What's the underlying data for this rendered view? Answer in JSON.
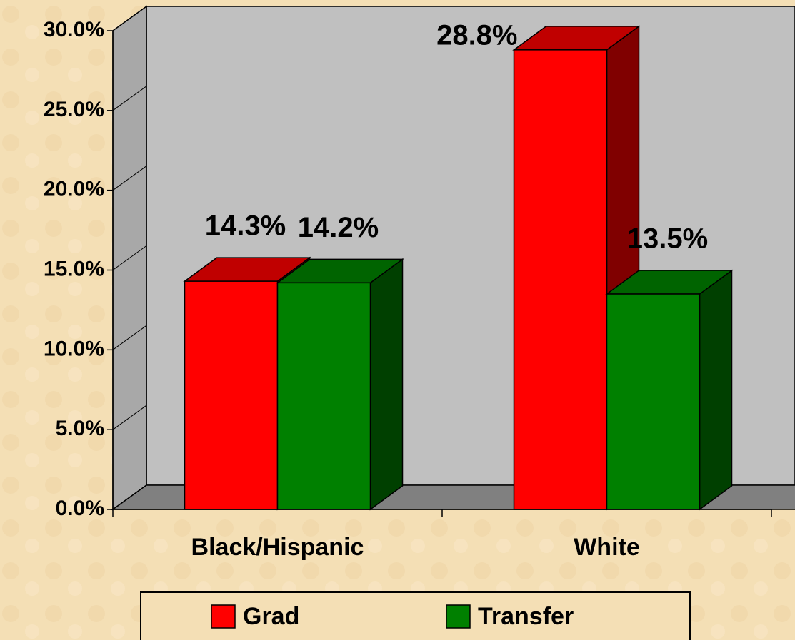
{
  "chart_data": {
    "type": "bar3d",
    "categories": [
      "Black/Hispanic",
      "White"
    ],
    "series": [
      {
        "name": "Grad",
        "color": "#ff0000",
        "top": "#c00000",
        "side": "#800000",
        "values": [
          14.3,
          28.8
        ],
        "value_labels": [
          "14.3%",
          "28.8%"
        ]
      },
      {
        "name": "Transfer",
        "color": "#008000",
        "top": "#006400",
        "side": "#004000",
        "values": [
          14.2,
          13.5
        ],
        "value_labels": [
          "14.2%",
          "13.5%"
        ]
      }
    ],
    "ylim": [
      0,
      30
    ],
    "yticks": [
      {
        "value": 0,
        "label": "0.0%"
      },
      {
        "value": 5,
        "label": "5.0%"
      },
      {
        "value": 10,
        "label": "10.0%"
      },
      {
        "value": 15,
        "label": "15.0%"
      },
      {
        "value": 20,
        "label": "20.0%"
      },
      {
        "value": 25,
        "label": "25.0%"
      },
      {
        "value": 30,
        "label": "30.0%"
      }
    ],
    "legend": "bottom"
  }
}
